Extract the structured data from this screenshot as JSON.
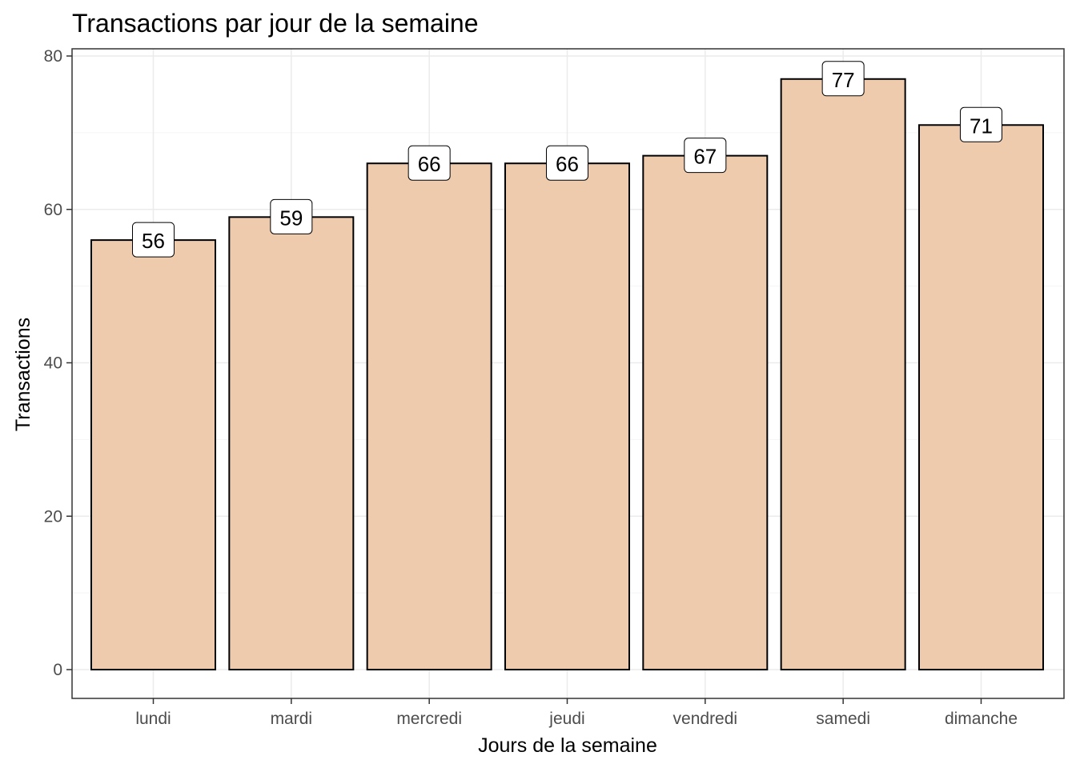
{
  "chart_data": {
    "type": "bar",
    "title": "Transactions par jour de la semaine",
    "xlabel": "Jours de la semaine",
    "ylabel": "Transactions",
    "categories": [
      "lundi",
      "mardi",
      "mercredi",
      "jeudi",
      "vendredi",
      "samedi",
      "dimanche"
    ],
    "values": [
      56,
      59,
      66,
      66,
      67,
      77,
      71
    ],
    "data_labels": [
      "56",
      "59",
      "66",
      "66",
      "67",
      "77",
      "71"
    ],
    "ylim": [
      0,
      80
    ],
    "yticks": [
      0,
      20,
      40,
      60,
      80
    ],
    "ytick_labels": [
      "0",
      "20",
      "40",
      "60",
      "80"
    ],
    "grid": true,
    "legend": "none",
    "colors": {
      "bar_fill": "#EFCBAE",
      "bar_stroke": "#000000",
      "panel_border": "#333333",
      "grid_major": "#EBEBEB",
      "grid_minor": "#F5F5F5",
      "label_box": "#FFFFFF"
    }
  }
}
